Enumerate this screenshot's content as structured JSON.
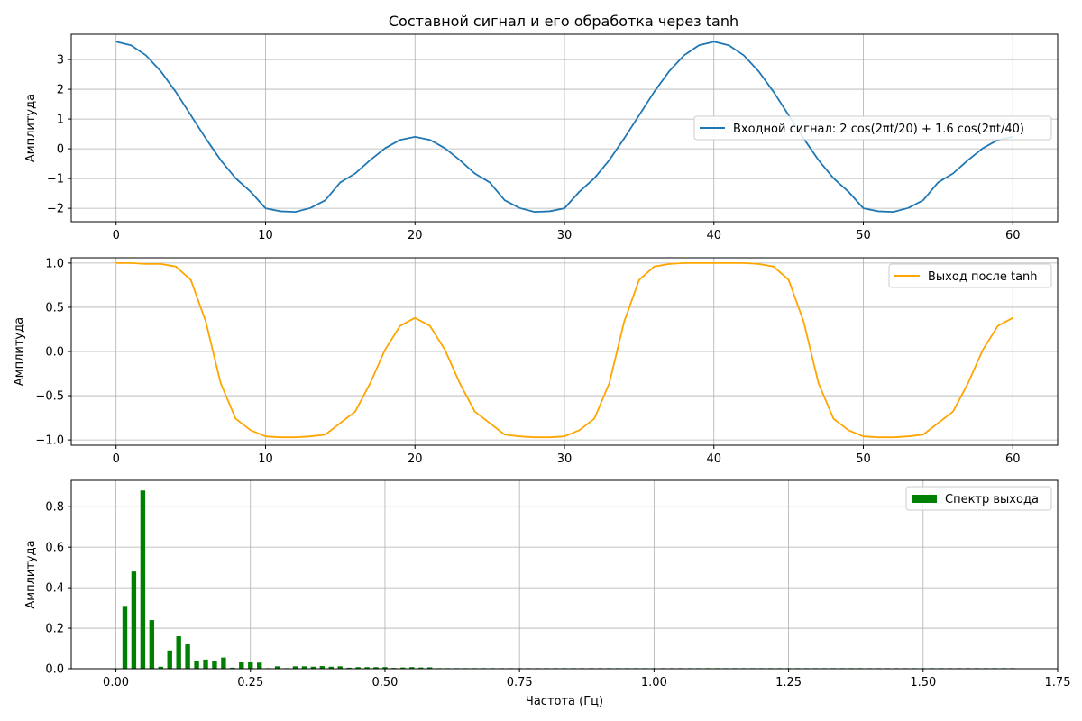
{
  "figure_title": "Составной сигнал и его обработка через tanh",
  "chart_data": [
    {
      "type": "line",
      "title": "Составной сигнал и его обработка через tanh",
      "xlabel": "",
      "ylabel": "Амплитуда",
      "xlim": [
        -3,
        63
      ],
      "ylim": [
        -2.45,
        3.85
      ],
      "xticks": [
        0,
        10,
        20,
        30,
        40,
        50,
        60
      ],
      "xtick_labels": [
        "0",
        "10",
        "20",
        "30",
        "40",
        "50",
        "60"
      ],
      "yticks": [
        -2,
        -1,
        0,
        1,
        2,
        3
      ],
      "ytick_labels": [
        "−2",
        "−1",
        "0",
        "1",
        "2",
        "3"
      ],
      "grid": true,
      "legend_position": "center-right",
      "series": [
        {
          "name": "Входной сигнал: 2 cos(2πt/20) + 1.6 cos(2πt/40)",
          "color": "#1f77b4",
          "x": [
            0,
            1,
            2,
            3,
            4,
            5,
            6,
            7,
            8,
            9,
            10,
            11,
            12,
            13,
            14,
            15,
            16,
            17,
            18,
            19,
            20,
            21,
            22,
            23,
            24,
            25,
            26,
            27,
            28,
            29,
            30,
            31,
            32,
            33,
            34,
            35,
            36,
            37,
            38,
            39,
            40,
            41,
            42,
            43,
            44,
            45,
            46,
            47,
            48,
            49,
            50,
            51,
            52,
            53,
            54,
            55,
            56,
            57,
            58,
            59,
            60
          ],
          "y": [
            3.6,
            3.48,
            3.14,
            2.6,
            1.91,
            1.13,
            0.35,
            -0.38,
            -0.99,
            -1.44,
            -2.0,
            -2.1,
            -2.12,
            -1.99,
            -1.73,
            -1.13,
            -0.83,
            -0.38,
            0.02,
            0.3,
            0.4,
            0.3,
            0.02,
            -0.38,
            -0.83,
            -1.13,
            -1.73,
            -1.99,
            -2.12,
            -2.1,
            -2.0,
            -1.44,
            -0.99,
            -0.38,
            0.35,
            1.13,
            1.91,
            2.6,
            3.14,
            3.48,
            3.6,
            3.48,
            3.14,
            2.6,
            1.91,
            1.13,
            0.35,
            -0.38,
            -0.99,
            -1.44,
            -2.0,
            -2.1,
            -2.12,
            -1.99,
            -1.73,
            -1.13,
            -0.83,
            -0.38,
            0.02,
            0.3,
            0.4
          ]
        }
      ]
    },
    {
      "type": "line",
      "title": "",
      "xlabel": "",
      "ylabel": "Амплитуда",
      "xlim": [
        -3,
        63
      ],
      "ylim": [
        -1.06,
        1.06
      ],
      "xticks": [
        0,
        10,
        20,
        30,
        40,
        50,
        60
      ],
      "xtick_labels": [
        "0",
        "10",
        "20",
        "30",
        "40",
        "50",
        "60"
      ],
      "yticks": [
        -1.0,
        -0.5,
        0.0,
        0.5,
        1.0
      ],
      "ytick_labels": [
        "−1.0",
        "−0.5",
        "0.0",
        "0.5",
        "1.0"
      ],
      "grid": true,
      "legend_position": "top-right",
      "series": [
        {
          "name": "Выход после tanh",
          "color": "#ffa500",
          "x": [
            0,
            1,
            2,
            3,
            4,
            5,
            6,
            7,
            8,
            9,
            10,
            11,
            12,
            13,
            14,
            15,
            16,
            17,
            18,
            19,
            20,
            21,
            22,
            23,
            24,
            25,
            26,
            27,
            28,
            29,
            30,
            31,
            32,
            33,
            34,
            35,
            36,
            37,
            38,
            39,
            40,
            41,
            42,
            43,
            44,
            45,
            46,
            47,
            48,
            49,
            50,
            51,
            52,
            53,
            54,
            55,
            56,
            57,
            58,
            59,
            60
          ],
          "y": [
            1.0,
            1.0,
            0.99,
            0.99,
            0.96,
            0.81,
            0.34,
            -0.36,
            -0.76,
            -0.89,
            -0.96,
            -0.97,
            -0.97,
            -0.96,
            -0.94,
            -0.81,
            -0.68,
            -0.36,
            0.02,
            0.29,
            0.38,
            0.29,
            0.02,
            -0.36,
            -0.68,
            -0.81,
            -0.94,
            -0.96,
            -0.97,
            -0.97,
            -0.96,
            -0.89,
            -0.76,
            -0.36,
            0.34,
            0.81,
            0.96,
            0.99,
            1.0,
            1.0,
            1.0,
            1.0,
            1.0,
            0.99,
            0.96,
            0.81,
            0.34,
            -0.36,
            -0.76,
            -0.89,
            -0.96,
            -0.97,
            -0.97,
            -0.96,
            -0.94,
            -0.81,
            -0.68,
            -0.36,
            0.02,
            0.29,
            0.38
          ]
        }
      ]
    },
    {
      "type": "bar",
      "title": "",
      "xlabel": "Частота (Гц)",
      "ylabel": "Амплитуда",
      "xlim": [
        -0.083,
        1.75
      ],
      "ylim": [
        0,
        0.93
      ],
      "xticks": [
        0.0,
        0.25,
        0.5,
        0.75,
        1.0,
        1.25,
        1.5,
        1.75
      ],
      "xtick_labels": [
        "0.00",
        "0.25",
        "0.50",
        "0.75",
        "1.00",
        "1.25",
        "1.50",
        "1.75"
      ],
      "yticks": [
        0.0,
        0.2,
        0.4,
        0.6,
        0.8
      ],
      "ytick_labels": [
        "0.0",
        "0.2",
        "0.4",
        "0.6",
        "0.8"
      ],
      "grid": true,
      "legend_position": "top-right",
      "bar_width": 0.009,
      "series": [
        {
          "name": "Спектр выхода",
          "color": "#008000",
          "x": [
            0.0,
            0.0167,
            0.0333,
            0.05,
            0.0667,
            0.0833,
            0.1,
            0.1167,
            0.1333,
            0.15,
            0.1667,
            0.1833,
            0.2,
            0.2167,
            0.2333,
            0.25,
            0.2667,
            0.2833,
            0.3,
            0.3167,
            0.3333,
            0.35,
            0.3667,
            0.3833,
            0.4,
            0.4167,
            0.4333,
            0.45,
            0.4667,
            0.4833,
            0.5,
            0.5167,
            0.5333,
            0.55,
            0.5667,
            0.5833,
            0.6,
            0.6167,
            0.6333,
            0.65,
            0.6667,
            0.6833,
            0.7,
            0.7167,
            0.7333,
            0.75,
            0.7667,
            0.7833,
            0.8,
            0.8167,
            0.8333,
            0.85,
            0.8667,
            0.8833,
            0.9,
            0.9167,
            0.9333,
            0.95,
            0.9667,
            0.9833,
            1.0,
            1.0167,
            1.0333,
            1.05,
            1.0667,
            1.0833,
            1.1,
            1.1167,
            1.1333,
            1.15,
            1.1667,
            1.1833,
            1.2,
            1.2167,
            1.2333,
            1.25,
            1.2667,
            1.2833,
            1.3,
            1.3167,
            1.3333,
            1.35,
            1.3667,
            1.3833,
            1.4,
            1.4167,
            1.4333,
            1.45,
            1.4667,
            1.4833,
            1.5,
            1.5167,
            1.5333,
            1.55,
            1.5667,
            1.5833,
            1.6,
            1.6167,
            1.6333,
            1.65,
            1.6667
          ],
          "values": [
            0.0,
            0.31,
            0.48,
            0.88,
            0.24,
            0.01,
            0.09,
            0.16,
            0.12,
            0.04,
            0.045,
            0.04,
            0.055,
            0.005,
            0.035,
            0.035,
            0.03,
            0.003,
            0.012,
            0.003,
            0.012,
            0.012,
            0.01,
            0.013,
            0.01,
            0.012,
            0.005,
            0.008,
            0.008,
            0.008,
            0.008,
            0.004,
            0.006,
            0.008,
            0.006,
            0.007,
            0.003,
            0.003,
            0.003,
            0.003,
            0.003,
            0.003,
            0.003,
            0.003,
            0.003,
            0.003,
            0.003,
            0.003,
            0.003,
            0.003,
            0.003,
            0.003,
            0.003,
            0.003,
            0.003,
            0.003,
            0.003,
            0.003,
            0.003,
            0.003,
            0.003,
            0.003,
            0.003,
            0.003,
            0.003,
            0.003,
            0.003,
            0.003,
            0.003,
            0.003,
            0.003,
            0.003,
            0.003,
            0.003,
            0.003,
            0.003,
            0.003,
            0.003,
            0.003,
            0.003,
            0.003,
            0.003,
            0.003,
            0.003,
            0.003,
            0.003,
            0.003,
            0.003,
            0.003,
            0.003,
            0.003,
            0.003,
            0.003,
            0.003,
            0.003,
            0.003,
            0.003,
            0.003,
            0.003,
            0.003,
            0.003
          ]
        }
      ]
    }
  ]
}
